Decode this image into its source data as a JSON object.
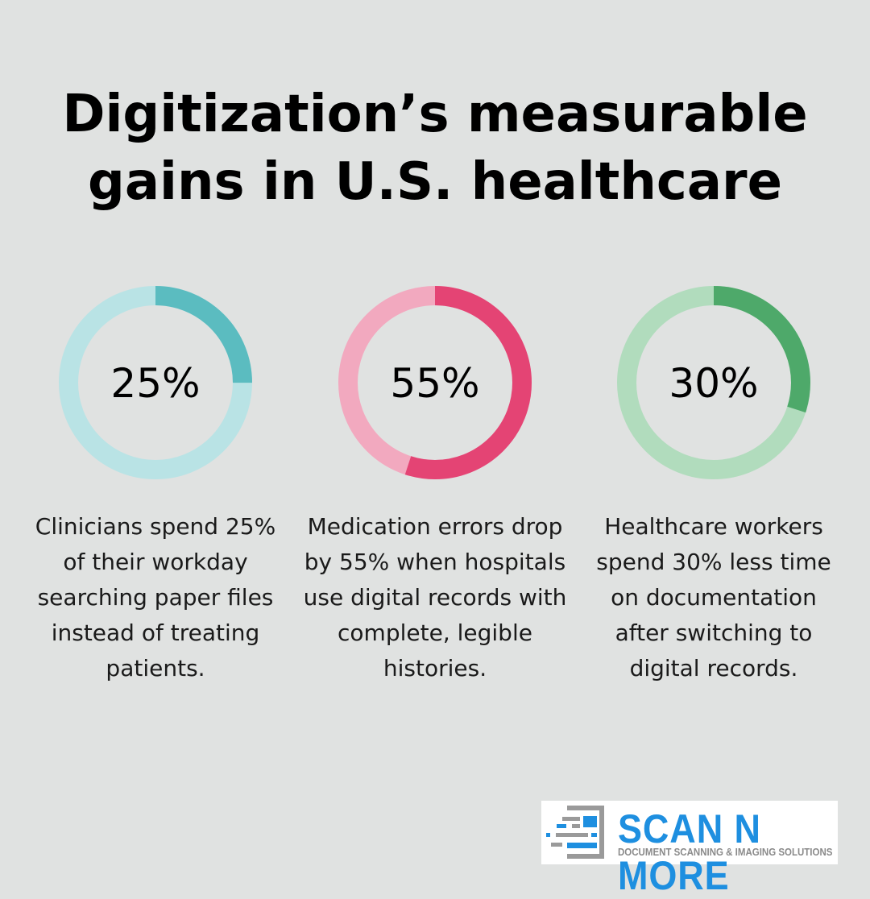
{
  "title": "Digitization’s measurable gains in U.S. healthcare",
  "chart_data": [
    {
      "type": "pie",
      "label": "25%",
      "value": 25,
      "description": "Clinicians spend 25% of their workday searching paper files instead of treating patients.",
      "color": "#5bbcc0",
      "track_color": "#b9e3e5"
    },
    {
      "type": "pie",
      "label": "55%",
      "value": 55,
      "description": "Medication errors drop by 55% when hospitals use digital records with complete, legible histories.",
      "color": "#e44474",
      "track_color": "#f2a9bf"
    },
    {
      "type": "pie",
      "label": "30%",
      "value": 30,
      "description": "Healthcare workers spend 30% less time on documentation after switching to digital records.",
      "color": "#4ea96a",
      "track_color": "#b1dcbd"
    }
  ],
  "logo": {
    "name": "SCAN N MORE",
    "tagline": "DOCUMENT SCANNING & IMAGING SOLUTIONS"
  }
}
